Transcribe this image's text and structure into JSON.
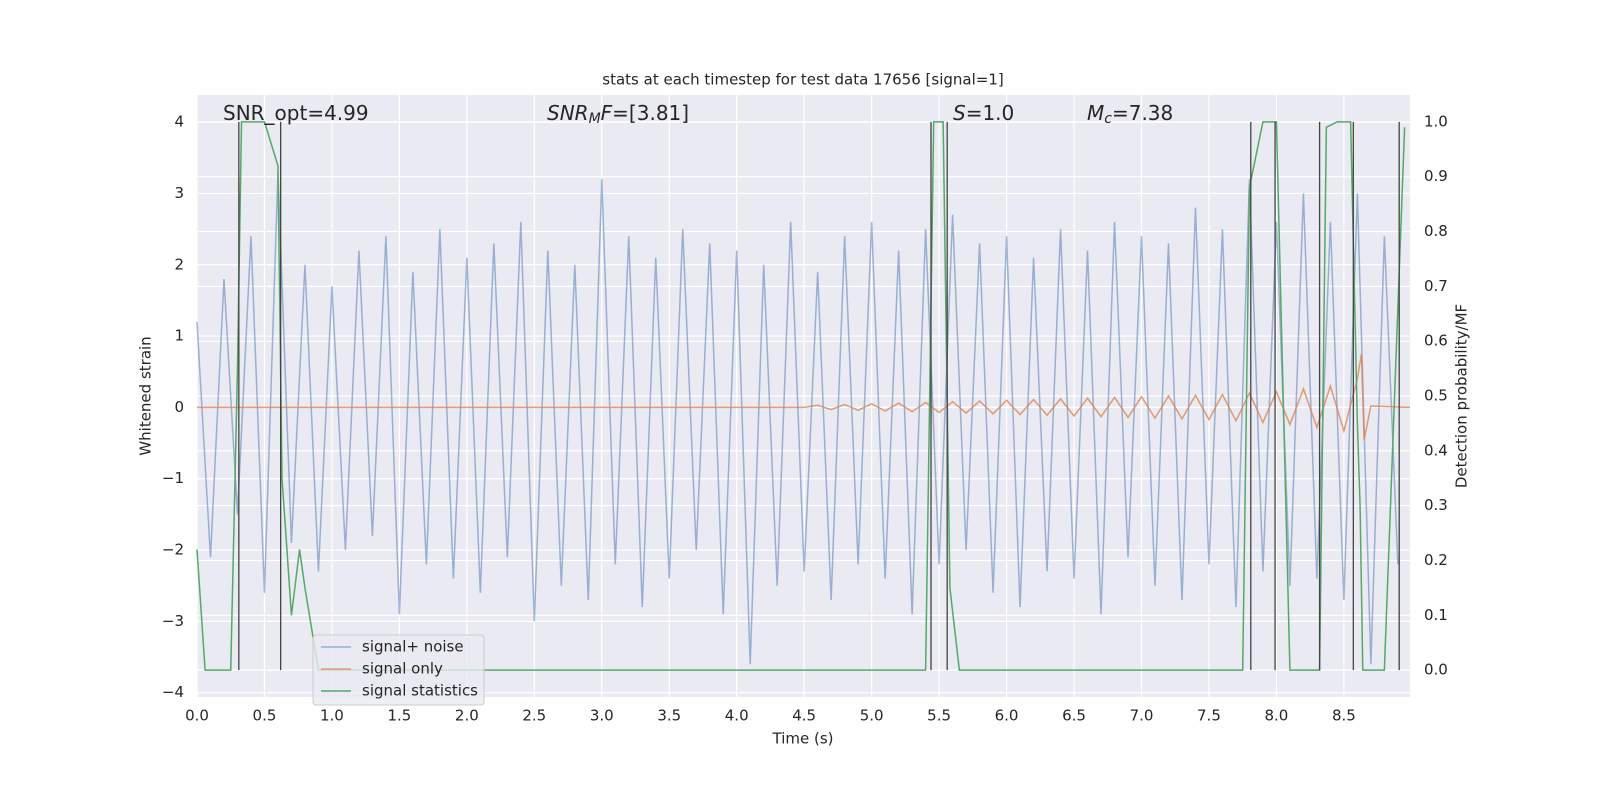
{
  "chart_data": {
    "type": "line",
    "title": "stats at each timestep for test data 17656 [signal=1]",
    "xlabel": "Time (s)",
    "ylabel": "Whitened strain",
    "y2label": "Detection probability/MF",
    "annotations": [
      [
        {
          "text": "SNR_opt=4.99",
          "style": "normal"
        }
      ],
      [
        {
          "text": "SNR",
          "style": "italic"
        },
        {
          "text": "M",
          "style": "sub"
        },
        {
          "text": "F",
          "style": "italic"
        },
        {
          "text": "=[3.81]",
          "style": "normal"
        }
      ],
      [
        {
          "text": "S",
          "style": "italic"
        },
        {
          "text": "=1.0",
          "style": "normal"
        }
      ],
      [
        {
          "text": "M",
          "style": "italic"
        },
        {
          "text": "c",
          "style": "sub"
        },
        {
          "text": "=7.38",
          "style": "normal"
        }
      ]
    ],
    "xlim": [
      0,
      8.99
    ],
    "ylim": [
      -4.06,
      4.38
    ],
    "y2lim": [
      -0.049,
      1.049
    ],
    "xticks": [
      {
        "value": 0,
        "label": "0.0"
      },
      0.5,
      {
        "value": 1,
        "label": "1.0"
      },
      1.5,
      {
        "value": 2,
        "label": "2.0"
      },
      2.5,
      {
        "value": 3,
        "label": "3.0"
      },
      3.5,
      {
        "value": 4,
        "label": "4.0"
      },
      4.5,
      {
        "value": 5,
        "label": "5.0"
      },
      5.5,
      {
        "value": 6,
        "label": "6.0"
      },
      6.5,
      {
        "value": 7,
        "label": "7.0"
      },
      7.5,
      {
        "value": 8,
        "label": "8.0"
      },
      8.5
    ],
    "yticks": [
      {
        "value": -4,
        "label": "−4"
      },
      {
        "value": -3,
        "label": "−3"
      },
      {
        "value": -2,
        "label": "−2"
      },
      {
        "value": -1,
        "label": "−1"
      },
      0,
      1,
      2,
      3,
      4
    ],
    "y2ticks": [
      {
        "value": 0,
        "label": "0.0"
      },
      0.1,
      0.2,
      0.3,
      0.4,
      0.5,
      0.6,
      0.7,
      0.8,
      0.9,
      {
        "value": 1,
        "label": "1.0"
      }
    ],
    "grid": true,
    "legend": "lower left",
    "series": [
      {
        "name": "signal+ noise",
        "color": "#4c72b0",
        "opacity": 0.5,
        "x": [
          0,
          0.1,
          0.2,
          0.3,
          0.4,
          0.5,
          0.6,
          0.7,
          0.8,
          0.9,
          1,
          1.1,
          1.2,
          1.3,
          1.4,
          1.5,
          1.6,
          1.7,
          1.8,
          1.9,
          2,
          2.1,
          2.2,
          2.3,
          2.4,
          2.5,
          2.6,
          2.7,
          2.8,
          2.9,
          3,
          3.1,
          3.2,
          3.3,
          3.4,
          3.5,
          3.6,
          3.7,
          3.8,
          3.9,
          4,
          4.1,
          4.2,
          4.3,
          4.4,
          4.5,
          4.6,
          4.7,
          4.8,
          4.9,
          5,
          5.1,
          5.2,
          5.3,
          5.4,
          5.5,
          5.6,
          5.7,
          5.8,
          5.9,
          6,
          6.1,
          6.2,
          6.3,
          6.4,
          6.5,
          6.6,
          6.7,
          6.8,
          6.9,
          7,
          7.1,
          7.2,
          7.3,
          7.4,
          7.5,
          7.6,
          7.7,
          7.8,
          7.9,
          8,
          8.1,
          8.2,
          8.3,
          8.4,
          8.5,
          8.6,
          8.7,
          8.8,
          8.9
        ],
        "values": [
          1.2,
          -2.1,
          1.8,
          -1.5,
          2.4,
          -2.6,
          3.3,
          -1.9,
          2.0,
          -2.3,
          1.7,
          -2.0,
          2.2,
          -1.8,
          2.4,
          -2.9,
          1.9,
          -2.2,
          2.5,
          -2.4,
          2.1,
          -2.6,
          2.3,
          -2.1,
          2.6,
          -3.0,
          2.2,
          -2.5,
          2.0,
          -2.7,
          3.2,
          -2.2,
          2.4,
          -2.8,
          2.1,
          -2.4,
          2.5,
          -2.0,
          2.3,
          -2.9,
          2.2,
          -3.6,
          2.0,
          -2.5,
          2.6,
          -2.3,
          1.9,
          -2.7,
          2.4,
          -2.2,
          2.6,
          -2.4,
          2.2,
          -2.9,
          2.5,
          -2.2,
          2.7,
          -2.0,
          2.3,
          -2.6,
          2.4,
          -2.8,
          2.1,
          -2.3,
          2.5,
          -2.4,
          2.2,
          -2.9,
          2.6,
          -2.1,
          2.4,
          -2.5,
          2.3,
          -2.7,
          2.8,
          -2.2,
          2.5,
          -2.8,
          3.2,
          -2.3,
          2.6,
          -2.5,
          3.0,
          -2.4,
          2.6,
          -2.7,
          3.0,
          -3.6,
          2.4,
          -2.2
        ]
      },
      {
        "name": "signal only",
        "color": "#dd8452",
        "opacity": 0.8,
        "x": [
          0,
          4.5,
          4.6,
          4.7,
          4.8,
          4.9,
          5.0,
          5.1,
          5.2,
          5.3,
          5.4,
          5.5,
          5.6,
          5.7,
          5.8,
          5.9,
          6.0,
          6.1,
          6.2,
          6.3,
          6.4,
          6.5,
          6.6,
          6.7,
          6.8,
          6.9,
          7.0,
          7.1,
          7.2,
          7.3,
          7.4,
          7.5,
          7.6,
          7.7,
          7.8,
          7.9,
          8.0,
          8.1,
          8.2,
          8.3,
          8.4,
          8.5,
          8.6,
          8.63,
          8.65,
          8.7,
          8.99
        ],
        "values": [
          0,
          0,
          0.03,
          -0.03,
          0.04,
          -0.04,
          0.05,
          -0.05,
          0.06,
          -0.06,
          0.07,
          -0.07,
          0.08,
          -0.08,
          0.09,
          -0.09,
          0.1,
          -0.1,
          0.11,
          -0.11,
          0.12,
          -0.12,
          0.13,
          -0.13,
          0.14,
          -0.14,
          0.15,
          -0.15,
          0.16,
          -0.16,
          0.17,
          -0.17,
          0.18,
          -0.19,
          0.2,
          -0.21,
          0.22,
          -0.24,
          0.26,
          -0.28,
          0.3,
          -0.33,
          0.4,
          0.75,
          -0.45,
          0.02,
          0
        ]
      },
      {
        "name": "signal statistics",
        "color": "#55a868",
        "opacity": 1,
        "axis": "y2",
        "x": [
          0,
          0.06,
          0.25,
          0.3,
          0.33,
          0.5,
          0.6,
          0.63,
          0.7,
          0.76,
          0.8,
          0.9,
          5.4,
          5.46,
          5.53,
          5.58,
          5.65,
          7.75,
          7.8,
          7.9,
          8.0,
          8.1,
          8.32,
          8.37,
          8.45,
          8.55,
          8.6,
          8.62,
          8.64,
          8.8,
          8.95
        ],
        "values": [
          0.22,
          0,
          0,
          0.55,
          1.0,
          1.0,
          0.92,
          0.35,
          0.1,
          0.22,
          0.15,
          0,
          0,
          1.0,
          1.0,
          0.15,
          0,
          0,
          0.88,
          1.0,
          1.0,
          0,
          0,
          0.99,
          1.0,
          1.0,
          0.45,
          0.3,
          0,
          0,
          0.99
        ]
      }
    ],
    "vlines": {
      "color": "#444444",
      "axis": "y2",
      "ymin": 0,
      "ymax": 1,
      "x": [
        0.31,
        0.62,
        5.44,
        5.56,
        7.81,
        7.99,
        8.32,
        8.57,
        8.91
      ]
    }
  }
}
